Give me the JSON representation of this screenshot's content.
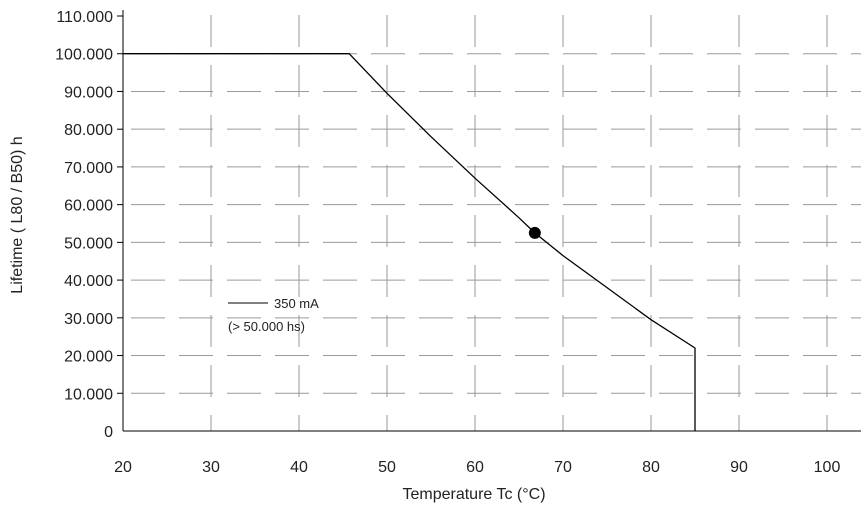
{
  "chart_data": {
    "type": "line",
    "xlabel": "Temperature Tc (°C)",
    "ylabel": "Lifetime ( L80 / B50) h",
    "xlim": [
      20,
      104
    ],
    "ylim": [
      0,
      110000
    ],
    "x_ticks": [
      "20",
      "30",
      "40",
      "50",
      "60",
      "70",
      "80",
      "90",
      "100"
    ],
    "y_ticks": [
      "0",
      "10.000",
      "20.000",
      "30.000",
      "40.000",
      "50.000",
      "60.000",
      "70.000",
      "80.000",
      "90.000",
      "100.000",
      "110.000"
    ],
    "grid": true,
    "legend": {
      "placement": "left-middle",
      "line1": "350 mA",
      "line2": "(> 50.000 hs)"
    },
    "series": [
      {
        "name": "350 mA",
        "x": [
          20,
          45.7,
          50,
          55,
          60,
          65,
          66.8,
          70,
          75,
          80,
          85,
          85
        ],
        "y": [
          100000,
          100000,
          89500,
          78000,
          67000,
          56500,
          52500,
          46500,
          38000,
          29500,
          22000,
          0
        ]
      }
    ],
    "marker": {
      "x": 66.8,
      "y": 52500
    },
    "colors": {
      "line": "#000000",
      "grid": "#9a9a9a",
      "axis": "#000000"
    }
  }
}
